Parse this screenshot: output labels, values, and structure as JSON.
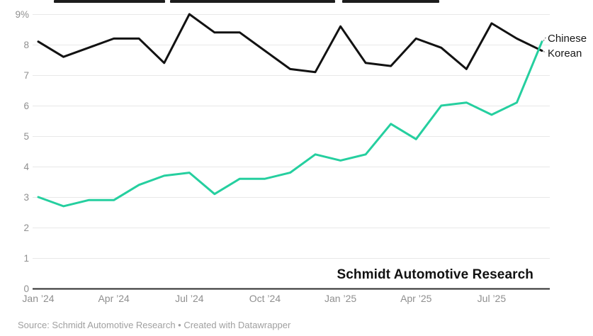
{
  "chart_data": {
    "type": "line",
    "categories": [
      "Jan ’24",
      "Feb ’24",
      "Mar ’24",
      "Apr ’24",
      "May ’24",
      "Jun ’24",
      "Jul ’24",
      "Aug ’24",
      "Sep ’24",
      "Oct ’24",
      "Nov ’24",
      "Dec ’24",
      "Jan ’25",
      "Feb ’25",
      "Mar ’25",
      "Apr ’25",
      "May ’25",
      "Jun ’25",
      "Jul ’25",
      "Aug ’25",
      "Sep ’25"
    ],
    "x_tick_indices": [
      0,
      3,
      6,
      9,
      12,
      15,
      18
    ],
    "y_tick_labels": [
      "0",
      "1",
      "2",
      "3",
      "4",
      "5",
      "6",
      "7",
      "8",
      "9%"
    ],
    "ylim": [
      0,
      9
    ],
    "grid": "horizontal",
    "series": [
      {
        "name": "Korean",
        "color": "#121212",
        "values": [
          8.1,
          7.6,
          7.9,
          8.2,
          8.2,
          7.4,
          9.0,
          8.4,
          8.4,
          7.8,
          7.2,
          7.1,
          8.6,
          7.4,
          7.3,
          8.2,
          7.9,
          7.2,
          8.7,
          8.2,
          7.8
        ]
      },
      {
        "name": "Chinese",
        "color": "#25cf9f",
        "values": [
          3.0,
          2.7,
          2.9,
          2.9,
          3.4,
          3.7,
          3.8,
          3.1,
          3.6,
          3.6,
          3.8,
          4.4,
          4.2,
          4.4,
          5.4,
          4.9,
          6.0,
          6.1,
          5.7,
          6.1,
          8.1
        ]
      }
    ],
    "legend_position": "right-of-line-ends",
    "watermark": "Schmidt Automotive Research"
  },
  "legend": {
    "top_label": "Chinese",
    "bottom_label": "Korean"
  },
  "footer": {
    "source_line": "Source: Schmidt Automotive Research • Created with Datawrapper"
  },
  "colors": {
    "korean_line": "#121212",
    "chinese_line": "#25cf9f",
    "gridline": "#e8e8e8",
    "axis_baseline": "#2d2d2d",
    "tick_label": "#8f8f8f",
    "leader_line": "#8c8c8c",
    "footer_text": "#a0a0a0"
  }
}
